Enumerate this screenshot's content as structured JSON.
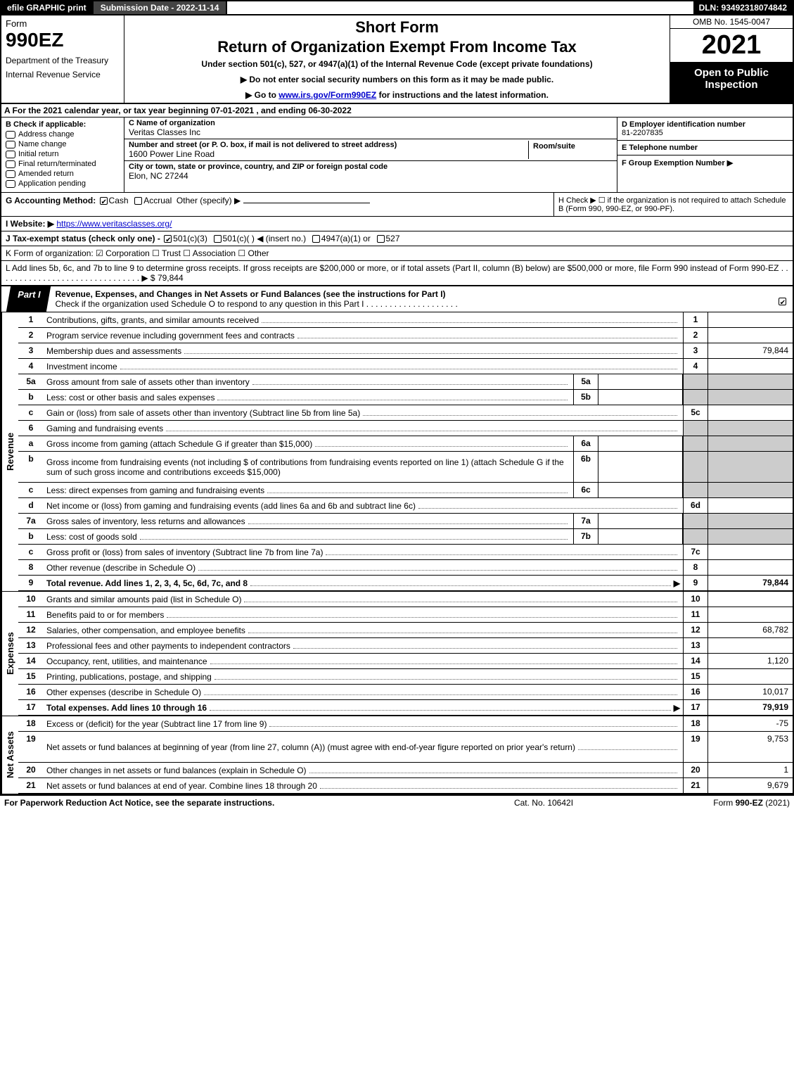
{
  "topbar": {
    "efile": "efile GRAPHIC print",
    "submission": "Submission Date - 2022-11-14",
    "dln": "DLN: 93492318074842"
  },
  "header": {
    "form_word": "Form",
    "form_number": "990EZ",
    "department": "Department of the Treasury",
    "irs": "Internal Revenue Service",
    "short_form": "Short Form",
    "title": "Return of Organization Exempt From Income Tax",
    "under_section": "Under section 501(c), 527, or 4947(a)(1) of the Internal Revenue Code (except private foundations)",
    "no_ssn": "▶ Do not enter social security numbers on this form as it may be made public.",
    "goto_pre": "▶ Go to ",
    "goto_link": "www.irs.gov/Form990EZ",
    "goto_post": " for instructions and the latest information.",
    "omb": "OMB No. 1545-0047",
    "year": "2021",
    "open": "Open to Public Inspection"
  },
  "section_a": "A  For the 2021 calendar year, or tax year beginning 07-01-2021 , and ending 06-30-2022",
  "section_b": {
    "label": "B  Check if applicable:",
    "items": [
      "Address change",
      "Name change",
      "Initial return",
      "Final return/terminated",
      "Amended return",
      "Application pending"
    ]
  },
  "section_c": {
    "name_label": "C Name of organization",
    "name": "Veritas Classes Inc",
    "street_label": "Number and street (or P. O. box, if mail is not delivered to street address)",
    "room_label": "Room/suite",
    "street": "1600 Power Line Road",
    "city_label": "City or town, state or province, country, and ZIP or foreign postal code",
    "city": "Elon, NC  27244"
  },
  "section_d": {
    "ein_label": "D Employer identification number",
    "ein": "81-2207835",
    "phone_label": "E Telephone number",
    "phone": "",
    "group_label": "F Group Exemption Number   ▶",
    "group": ""
  },
  "row_gh": {
    "g_label": "G Accounting Method:",
    "g_cash": "Cash",
    "g_accrual": "Accrual",
    "g_other": "Other (specify) ▶",
    "h_text": "H  Check ▶ ☐ if the organization is not required to attach Schedule B (Form 990, 990-EZ, or 990-PF)."
  },
  "website": {
    "label": "I Website: ▶",
    "url": "https://www.veritasclasses.org/"
  },
  "tax_exempt": {
    "label": "J Tax-exempt status (check only one) - ",
    "opt1": "501(c)(3)",
    "opt2": "501(c)(  ) ◀ (insert no.)",
    "opt3": "4947(a)(1) or",
    "opt4": "527"
  },
  "line_k": "K Form of organization:  ☑ Corporation   ☐ Trust   ☐ Association   ☐ Other",
  "line_l": "L Add lines 5b, 6c, and 7b to line 9 to determine gross receipts. If gross receipts are $200,000 or more, or if total assets (Part II, column (B) below) are $500,000 or more, file Form 990 instead of Form 990-EZ . . . . . . . . . . . . . . . . . . . . . . . . . . . . . . . ▶ $ 79,844",
  "part1": {
    "tab": "Part I",
    "title": "Revenue, Expenses, and Changes in Net Assets or Fund Balances (see the instructions for Part I)",
    "sub": "Check if the organization used Schedule O to respond to any question in this Part I . . . . . . . . . . . . . . . . . . . ."
  },
  "side_labels": {
    "revenue": "Revenue",
    "expenses": "Expenses",
    "netassets": "Net Assets"
  },
  "revenue_lines": [
    {
      "n": "1",
      "d": "Contributions, gifts, grants, and similar amounts received",
      "rn": "1",
      "rv": ""
    },
    {
      "n": "2",
      "d": "Program service revenue including government fees and contracts",
      "rn": "2",
      "rv": ""
    },
    {
      "n": "3",
      "d": "Membership dues and assessments",
      "rn": "3",
      "rv": "79,844"
    },
    {
      "n": "4",
      "d": "Investment income",
      "rn": "4",
      "rv": ""
    },
    {
      "n": "5a",
      "d": "Gross amount from sale of assets other than inventory",
      "sn": "5a",
      "sv": "",
      "rn": "",
      "rv": "",
      "shaded": true
    },
    {
      "n": "b",
      "d": "Less: cost or other basis and sales expenses",
      "sn": "5b",
      "sv": "",
      "rn": "",
      "rv": "",
      "shaded": true
    },
    {
      "n": "c",
      "d": "Gain or (loss) from sale of assets other than inventory (Subtract line 5b from line 5a)",
      "rn": "5c",
      "rv": ""
    },
    {
      "n": "6",
      "d": "Gaming and fundraising events",
      "rn": "",
      "rv": "",
      "shaded": true,
      "noline": true
    },
    {
      "n": "a",
      "d": "Gross income from gaming (attach Schedule G if greater than $15,000)",
      "sn": "6a",
      "sv": "",
      "rn": "",
      "rv": "",
      "shaded": true
    },
    {
      "n": "b",
      "d": "Gross income from fundraising events (not including $           of contributions from fundraising events reported on line 1) (attach Schedule G if the sum of such gross income and contributions exceeds $15,000)",
      "sn": "6b",
      "sv": "",
      "rn": "",
      "rv": "",
      "shaded": true,
      "tall": true
    },
    {
      "n": "c",
      "d": "Less: direct expenses from gaming and fundraising events",
      "sn": "6c",
      "sv": "",
      "rn": "",
      "rv": "",
      "shaded": true
    },
    {
      "n": "d",
      "d": "Net income or (loss) from gaming and fundraising events (add lines 6a and 6b and subtract line 6c)",
      "rn": "6d",
      "rv": ""
    },
    {
      "n": "7a",
      "d": "Gross sales of inventory, less returns and allowances",
      "sn": "7a",
      "sv": "",
      "rn": "",
      "rv": "",
      "shaded": true
    },
    {
      "n": "b",
      "d": "Less: cost of goods sold",
      "sn": "7b",
      "sv": "",
      "rn": "",
      "rv": "",
      "shaded": true
    },
    {
      "n": "c",
      "d": "Gross profit or (loss) from sales of inventory (Subtract line 7b from line 7a)",
      "rn": "7c",
      "rv": ""
    },
    {
      "n": "8",
      "d": "Other revenue (describe in Schedule O)",
      "rn": "8",
      "rv": ""
    },
    {
      "n": "9",
      "d": "Total revenue. Add lines 1, 2, 3, 4, 5c, 6d, 7c, and 8",
      "rn": "9",
      "rv": "79,844",
      "bold": true,
      "arrow": true
    }
  ],
  "expense_lines": [
    {
      "n": "10",
      "d": "Grants and similar amounts paid (list in Schedule O)",
      "rn": "10",
      "rv": ""
    },
    {
      "n": "11",
      "d": "Benefits paid to or for members",
      "rn": "11",
      "rv": ""
    },
    {
      "n": "12",
      "d": "Salaries, other compensation, and employee benefits",
      "rn": "12",
      "rv": "68,782"
    },
    {
      "n": "13",
      "d": "Professional fees and other payments to independent contractors",
      "rn": "13",
      "rv": ""
    },
    {
      "n": "14",
      "d": "Occupancy, rent, utilities, and maintenance",
      "rn": "14",
      "rv": "1,120"
    },
    {
      "n": "15",
      "d": "Printing, publications, postage, and shipping",
      "rn": "15",
      "rv": ""
    },
    {
      "n": "16",
      "d": "Other expenses (describe in Schedule O)",
      "rn": "16",
      "rv": "10,017"
    },
    {
      "n": "17",
      "d": "Total expenses. Add lines 10 through 16",
      "rn": "17",
      "rv": "79,919",
      "bold": true,
      "arrow": true
    }
  ],
  "netasset_lines": [
    {
      "n": "18",
      "d": "Excess or (deficit) for the year (Subtract line 17 from line 9)",
      "rn": "18",
      "rv": "-75"
    },
    {
      "n": "19",
      "d": "Net assets or fund balances at beginning of year (from line 27, column (A)) (must agree with end-of-year figure reported on prior year's return)",
      "rn": "19",
      "rv": "9,753",
      "tall": true
    },
    {
      "n": "20",
      "d": "Other changes in net assets or fund balances (explain in Schedule O)",
      "rn": "20",
      "rv": "1"
    },
    {
      "n": "21",
      "d": "Net assets or fund balances at end of year. Combine lines 18 through 20",
      "rn": "21",
      "rv": "9,679"
    }
  ],
  "footer": {
    "left": "For Paperwork Reduction Act Notice, see the separate instructions.",
    "mid": "Cat. No. 10642I",
    "right_pre": "Form ",
    "right_form": "990-EZ",
    "right_post": " (2021)"
  },
  "colors": {
    "black": "#000000",
    "white": "#ffffff",
    "darkgray": "#444444",
    "shaded": "#cccccc",
    "link": "#0000cc"
  }
}
